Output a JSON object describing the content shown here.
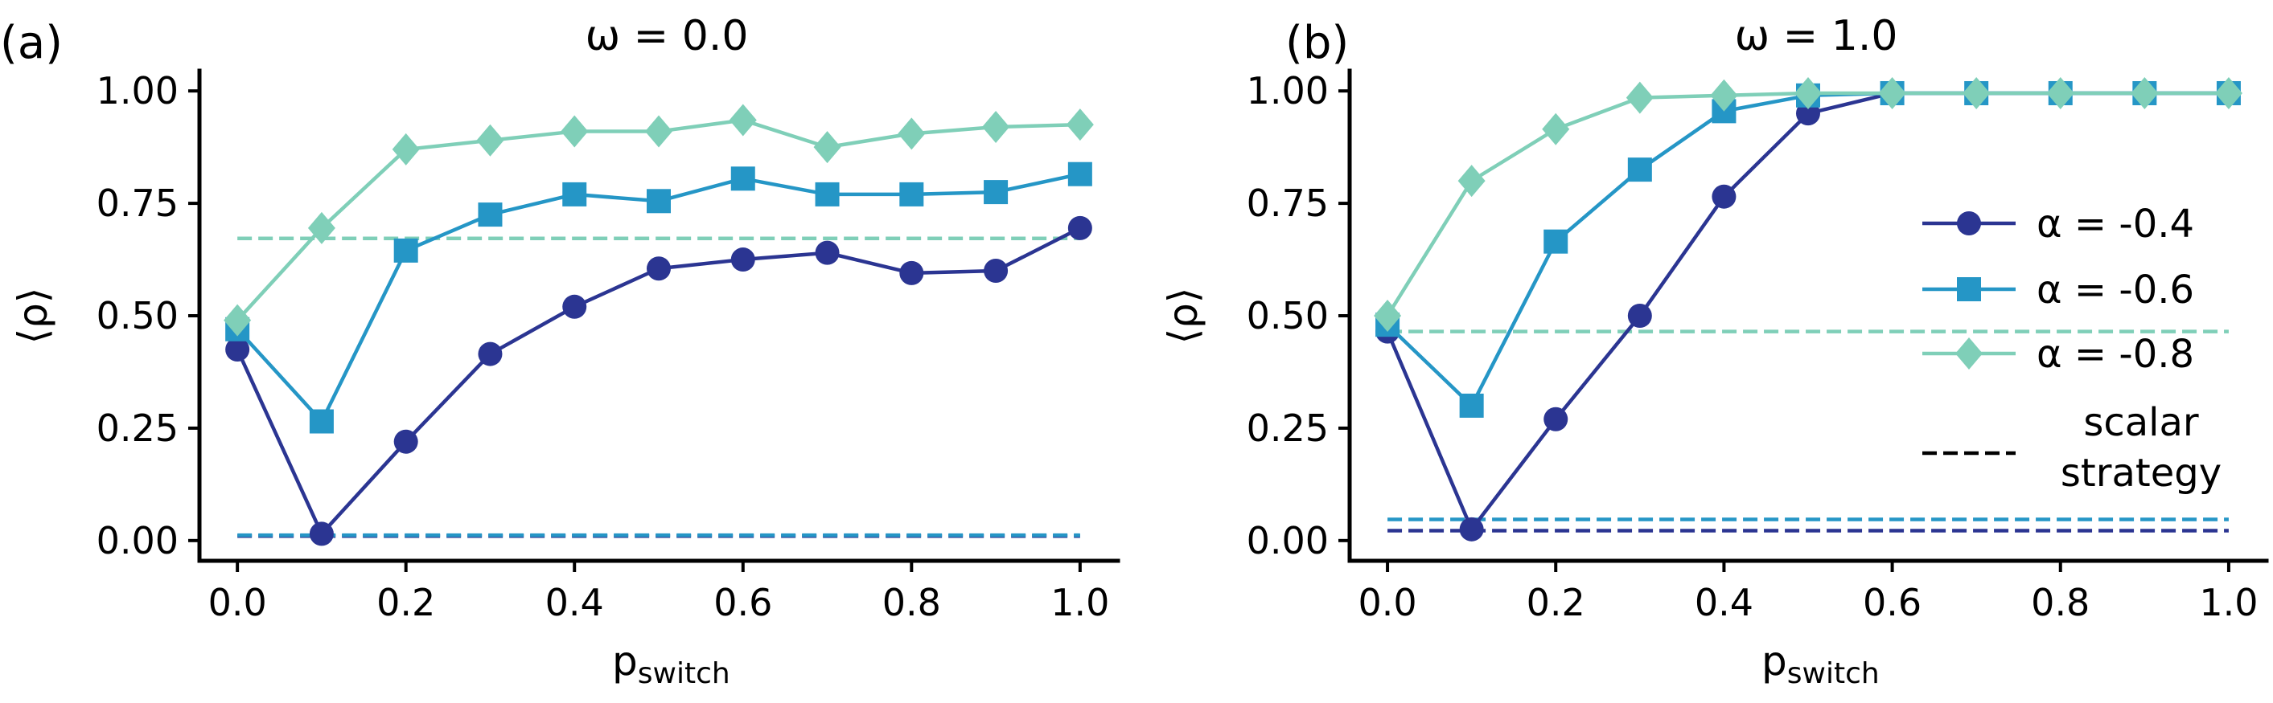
{
  "chart_data": [
    {
      "type": "line",
      "panel_label": "(a)",
      "title": "ω = 0.0",
      "xlabel_main": "p",
      "xlabel_sub": "switch",
      "ylabel": "⟨ρ⟩",
      "x": [
        0.0,
        0.1,
        0.2,
        0.3,
        0.4,
        0.5,
        0.6,
        0.7,
        0.8,
        0.9,
        1.0
      ],
      "xlim": [
        -0.045,
        1.045
      ],
      "ylim": [
        -0.045,
        1.045
      ],
      "xticks": [
        "0.0",
        "0.2",
        "0.4",
        "0.6",
        "0.8",
        "1.0"
      ],
      "yticks": [
        "0.00",
        "0.25",
        "0.50",
        "0.75",
        "1.00"
      ],
      "series": [
        {
          "name": "α = -0.4",
          "color": "#2b3592",
          "marker": "circle",
          "values": [
            0.425,
            0.015,
            0.22,
            0.415,
            0.52,
            0.605,
            0.625,
            0.64,
            0.595,
            0.6,
            0.695
          ]
        },
        {
          "name": "α = -0.6",
          "color": "#2596c6",
          "marker": "square",
          "values": [
            0.47,
            0.265,
            0.645,
            0.725,
            0.77,
            0.755,
            0.805,
            0.77,
            0.77,
            0.775,
            0.815
          ]
        },
        {
          "name": "α = -0.8",
          "color": "#7fcfb8",
          "marker": "diamond",
          "values": [
            0.49,
            0.695,
            0.87,
            0.89,
            0.91,
            0.91,
            0.935,
            0.875,
            0.905,
            0.92,
            0.925
          ]
        }
      ],
      "scalar_strategy": [
        {
          "color": "#2b3592",
          "value": 0.01
        },
        {
          "color": "#2596c6",
          "value": 0.012
        },
        {
          "color": "#7fcfb8",
          "value": 0.672
        }
      ]
    },
    {
      "type": "line",
      "panel_label": "(b)",
      "title": "ω = 1.0",
      "xlabel_main": "p",
      "xlabel_sub": "switch",
      "ylabel": "⟨ρ⟩",
      "x": [
        0.0,
        0.1,
        0.2,
        0.3,
        0.4,
        0.5,
        0.6,
        0.7,
        0.8,
        0.9,
        1.0
      ],
      "xlim": [
        -0.045,
        1.045
      ],
      "ylim": [
        -0.045,
        1.045
      ],
      "xticks": [
        "0.0",
        "0.2",
        "0.4",
        "0.6",
        "0.8",
        "1.0"
      ],
      "yticks": [
        "0.00",
        "0.25",
        "0.50",
        "0.75",
        "1.00"
      ],
      "series": [
        {
          "name": "α = -0.4",
          "color": "#2b3592",
          "marker": "circle",
          "values": [
            0.465,
            0.025,
            0.27,
            0.5,
            0.765,
            0.95,
            0.995,
            0.995,
            0.995,
            0.995,
            0.995
          ]
        },
        {
          "name": "α = -0.6",
          "color": "#2596c6",
          "marker": "square",
          "values": [
            0.48,
            0.3,
            0.665,
            0.825,
            0.955,
            0.99,
            0.995,
            0.995,
            0.995,
            0.995,
            0.995
          ]
        },
        {
          "name": "α = -0.8",
          "color": "#7fcfb8",
          "marker": "diamond",
          "values": [
            0.5,
            0.8,
            0.915,
            0.985,
            0.99,
            0.995,
            0.995,
            0.995,
            0.995,
            0.995,
            0.995
          ]
        }
      ],
      "scalar_strategy": [
        {
          "color": "#2b3592",
          "value": 0.022
        },
        {
          "color": "#2596c6",
          "value": 0.047
        },
        {
          "color": "#7fcfb8",
          "value": 0.465
        }
      ],
      "legend": {
        "position": "center-right",
        "entries": [
          "α = -0.4",
          "α = -0.6",
          "α = -0.8"
        ],
        "scalar_label_line1": "scalar",
        "scalar_label_line2": "strategy"
      }
    }
  ]
}
